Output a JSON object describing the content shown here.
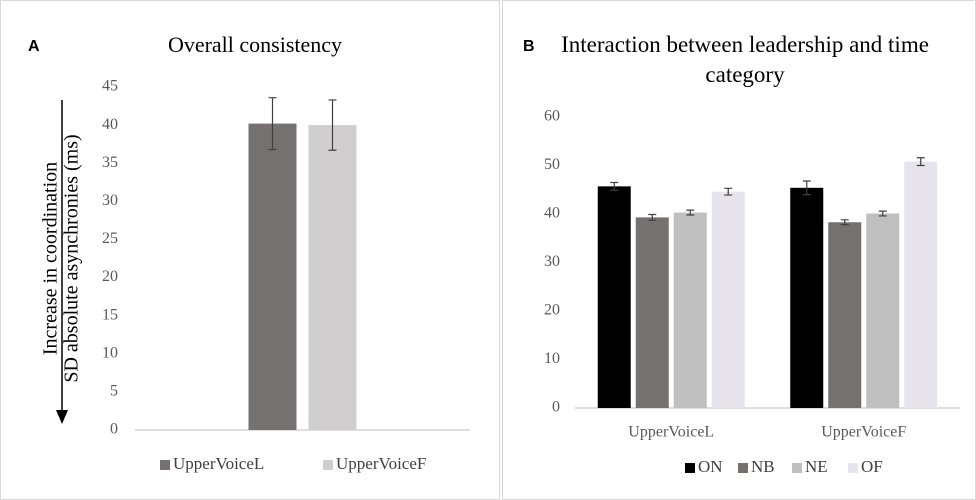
{
  "chart_data": [
    {
      "type": "bar",
      "panel": "A",
      "title": "Overall consistency",
      "annotation": "Increase in coordination",
      "ylabel": "SD absolute asynchronies (ms)",
      "categories": [
        null
      ],
      "series": [
        {
          "name": "UpperVoiceL",
          "color": "#767171",
          "values": [
            40.2
          ],
          "errors": [
            3.4
          ]
        },
        {
          "name": "UpperVoiceF",
          "color": "#d0cece",
          "values": [
            40.0
          ],
          "errors": [
            3.3
          ]
        }
      ],
      "ylim": [
        0,
        45
      ],
      "yticks": [
        0,
        5,
        10,
        15,
        20,
        25,
        30,
        35,
        40,
        45
      ]
    },
    {
      "type": "bar",
      "panel": "B",
      "title": "Interaction between leadership and time category",
      "categories": [
        "UpperVoiceL",
        "UpperVoiceF"
      ],
      "series": [
        {
          "name": "ON",
          "color": "#000000",
          "values": [
            45.7,
            45.4
          ],
          "errors": [
            0.8,
            1.4
          ]
        },
        {
          "name": "NB",
          "color": "#767171",
          "values": [
            39.3,
            38.3
          ],
          "errors": [
            0.6,
            0.5
          ]
        },
        {
          "name": "NE",
          "color": "#bfbfbf",
          "values": [
            40.3,
            40.1
          ],
          "errors": [
            0.5,
            0.5
          ]
        },
        {
          "name": "OF",
          "color": "#e7e4ec",
          "values": [
            44.6,
            50.8
          ],
          "errors": [
            0.7,
            0.8
          ]
        }
      ],
      "ylim": [
        0,
        60
      ],
      "yticks": [
        0,
        10,
        20,
        30,
        40,
        50,
        60
      ]
    }
  ]
}
